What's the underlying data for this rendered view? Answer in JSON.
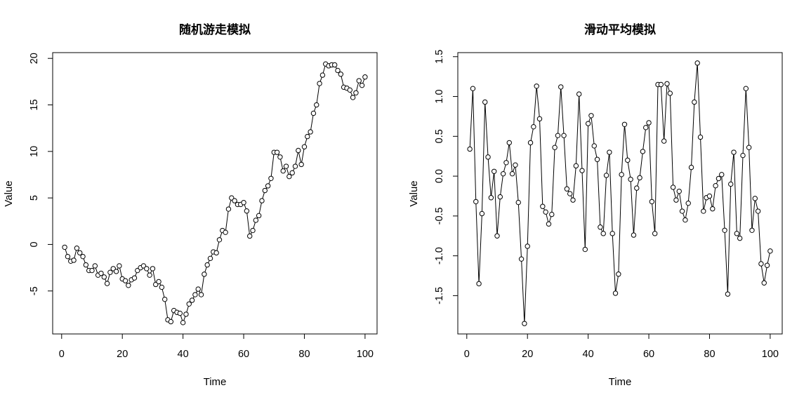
{
  "chart_data": [
    {
      "type": "line",
      "title": "随机游走模拟",
      "xlabel": "Time",
      "ylabel": "Value",
      "xlim": [
        1,
        100
      ],
      "ylim": [
        -8.5,
        19.5
      ],
      "xticks": [
        0,
        20,
        40,
        60,
        80,
        100
      ],
      "yticks": [
        -5,
        0,
        5,
        10,
        15,
        20
      ],
      "markers": "open-circle",
      "x": [
        1,
        2,
        3,
        4,
        5,
        6,
        7,
        8,
        9,
        10,
        11,
        12,
        13,
        14,
        15,
        16,
        17,
        18,
        19,
        20,
        21,
        22,
        23,
        24,
        25,
        26,
        27,
        28,
        29,
        30,
        31,
        32,
        33,
        34,
        35,
        36,
        37,
        38,
        39,
        40,
        41,
        42,
        43,
        44,
        45,
        46,
        47,
        48,
        49,
        50,
        51,
        52,
        53,
        54,
        55,
        56,
        57,
        58,
        59,
        60,
        61,
        62,
        63,
        64,
        65,
        66,
        67,
        68,
        69,
        70,
        71,
        72,
        73,
        74,
        75,
        76,
        77,
        78,
        79,
        80,
        81,
        82,
        83,
        84,
        85,
        86,
        87,
        88,
        89,
        90,
        91,
        92,
        93,
        94,
        95,
        96,
        97,
        98,
        99,
        100
      ],
      "values": [
        -0.3,
        -1.3,
        -1.8,
        -1.7,
        -0.4,
        -0.9,
        -1.3,
        -2.2,
        -2.8,
        -2.8,
        -2.3,
        -3.3,
        -3.1,
        -3.5,
        -4.2,
        -3.0,
        -2.6,
        -2.9,
        -2.3,
        -3.7,
        -3.9,
        -4.4,
        -3.8,
        -3.6,
        -2.8,
        -2.5,
        -2.3,
        -2.6,
        -3.3,
        -2.6,
        -4.3,
        -4.0,
        -4.6,
        -5.9,
        -8.1,
        -8.3,
        -7.1,
        -7.3,
        -7.4,
        -8.4,
        -7.5,
        -6.4,
        -6.0,
        -5.4,
        -4.8,
        -5.4,
        -3.2,
        -2.2,
        -1.5,
        -0.8,
        -0.9,
        0.5,
        1.5,
        1.3,
        3.8,
        5.0,
        4.7,
        4.3,
        4.3,
        4.5,
        3.6,
        0.9,
        1.5,
        2.6,
        3.1,
        4.7,
        5.8,
        6.3,
        7.1,
        9.9,
        9.9,
        9.4,
        7.9,
        8.4,
        7.3,
        7.7,
        8.4,
        10.1,
        8.6,
        10.5,
        11.6,
        12.1,
        14.1,
        15.0,
        17.3,
        18.2,
        19.4,
        19.2,
        19.3,
        19.3,
        18.7,
        18.3,
        16.9,
        16.8,
        16.6,
        15.8,
        16.3,
        17.6,
        17.1,
        18.0
      ]
    },
    {
      "type": "line",
      "title": "滑动平均模拟",
      "xlabel": "Time",
      "ylabel": "Value",
      "xlim": [
        1,
        100
      ],
      "ylim": [
        -1.85,
        1.42
      ],
      "xticks": [
        0,
        20,
        40,
        60,
        80,
        100
      ],
      "yticks": [
        -1.5,
        -1.0,
        -0.5,
        0.0,
        0.5,
        1.0,
        1.5
      ],
      "ytick_labels": [
        "-1.5",
        "-1.0",
        "-0.5",
        "0.0",
        "0.5",
        "1.0",
        "1.5"
      ],
      "markers": "open-circle",
      "x": [
        1,
        2,
        3,
        4,
        5,
        6,
        7,
        8,
        9,
        10,
        11,
        12,
        13,
        14,
        15,
        16,
        17,
        18,
        19,
        20,
        21,
        22,
        23,
        24,
        25,
        26,
        27,
        28,
        29,
        30,
        31,
        32,
        33,
        34,
        35,
        36,
        37,
        38,
        39,
        40,
        41,
        42,
        43,
        44,
        45,
        46,
        47,
        48,
        49,
        50,
        51,
        52,
        53,
        54,
        55,
        56,
        57,
        58,
        59,
        60,
        61,
        62,
        63,
        64,
        65,
        66,
        67,
        68,
        69,
        70,
        71,
        72,
        73,
        74,
        75,
        76,
        77,
        78,
        79,
        80,
        81,
        82,
        83,
        84,
        85,
        86,
        87,
        88,
        89,
        90,
        91,
        92,
        93,
        94,
        95,
        96,
        97,
        98,
        99,
        100
      ],
      "values": [
        0.34,
        1.1,
        -0.32,
        -1.35,
        -0.47,
        0.93,
        0.24,
        -0.27,
        0.06,
        -0.75,
        -0.26,
        0.03,
        0.17,
        0.42,
        0.03,
        0.14,
        -0.33,
        -1.04,
        -1.85,
        -0.88,
        0.42,
        0.62,
        1.13,
        0.72,
        -0.38,
        -0.45,
        -0.6,
        -0.48,
        0.36,
        0.51,
        1.12,
        0.51,
        -0.16,
        -0.22,
        -0.3,
        0.13,
        1.03,
        0.07,
        -0.92,
        0.66,
        0.76,
        0.38,
        0.21,
        -0.64,
        -0.72,
        0.01,
        0.3,
        -0.72,
        -1.47,
        -1.23,
        0.02,
        0.65,
        0.2,
        -0.04,
        -0.74,
        -0.15,
        -0.02,
        0.31,
        0.61,
        0.67,
        -0.32,
        -0.72,
        1.15,
        1.15,
        0.44,
        1.16,
        1.04,
        -0.14,
        -0.3,
        -0.19,
        -0.44,
        -0.55,
        -0.34,
        0.11,
        0.93,
        1.42,
        0.49,
        -0.44,
        -0.27,
        -0.25,
        -0.41,
        -0.12,
        -0.03,
        0.02,
        -0.68,
        -1.48,
        -0.1,
        0.3,
        -0.72,
        -0.78,
        0.26,
        1.1,
        0.36,
        -0.68,
        -0.28,
        -0.44,
        -1.1,
        -1.34,
        -1.12,
        -0.94
      ]
    }
  ]
}
